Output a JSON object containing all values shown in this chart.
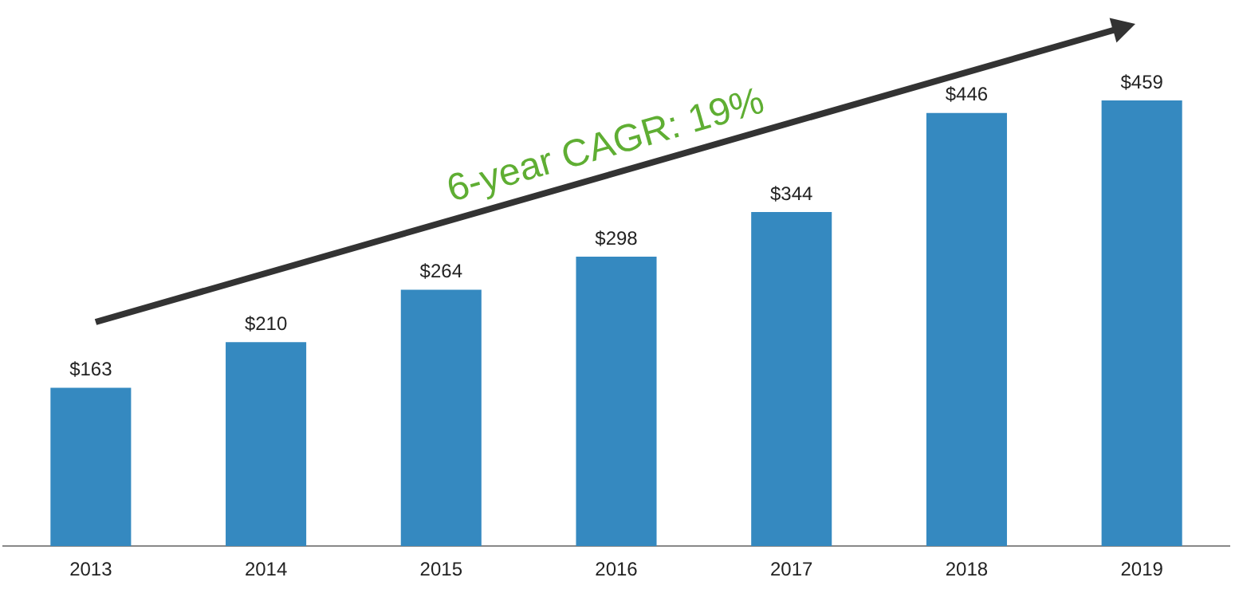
{
  "chart_data": {
    "type": "bar",
    "categories": [
      "2013",
      "2014",
      "2015",
      "2016",
      "2017",
      "2018",
      "2019"
    ],
    "values": [
      163,
      210,
      264,
      298,
      344,
      446,
      459
    ],
    "value_labels": [
      "$163",
      "$210",
      "$264",
      "$298",
      "$344",
      "$446",
      "$459"
    ],
    "color": "#3589c0",
    "grid": false,
    "legend": false,
    "annotations": [
      "6-year CAGR: 19%"
    ]
  }
}
